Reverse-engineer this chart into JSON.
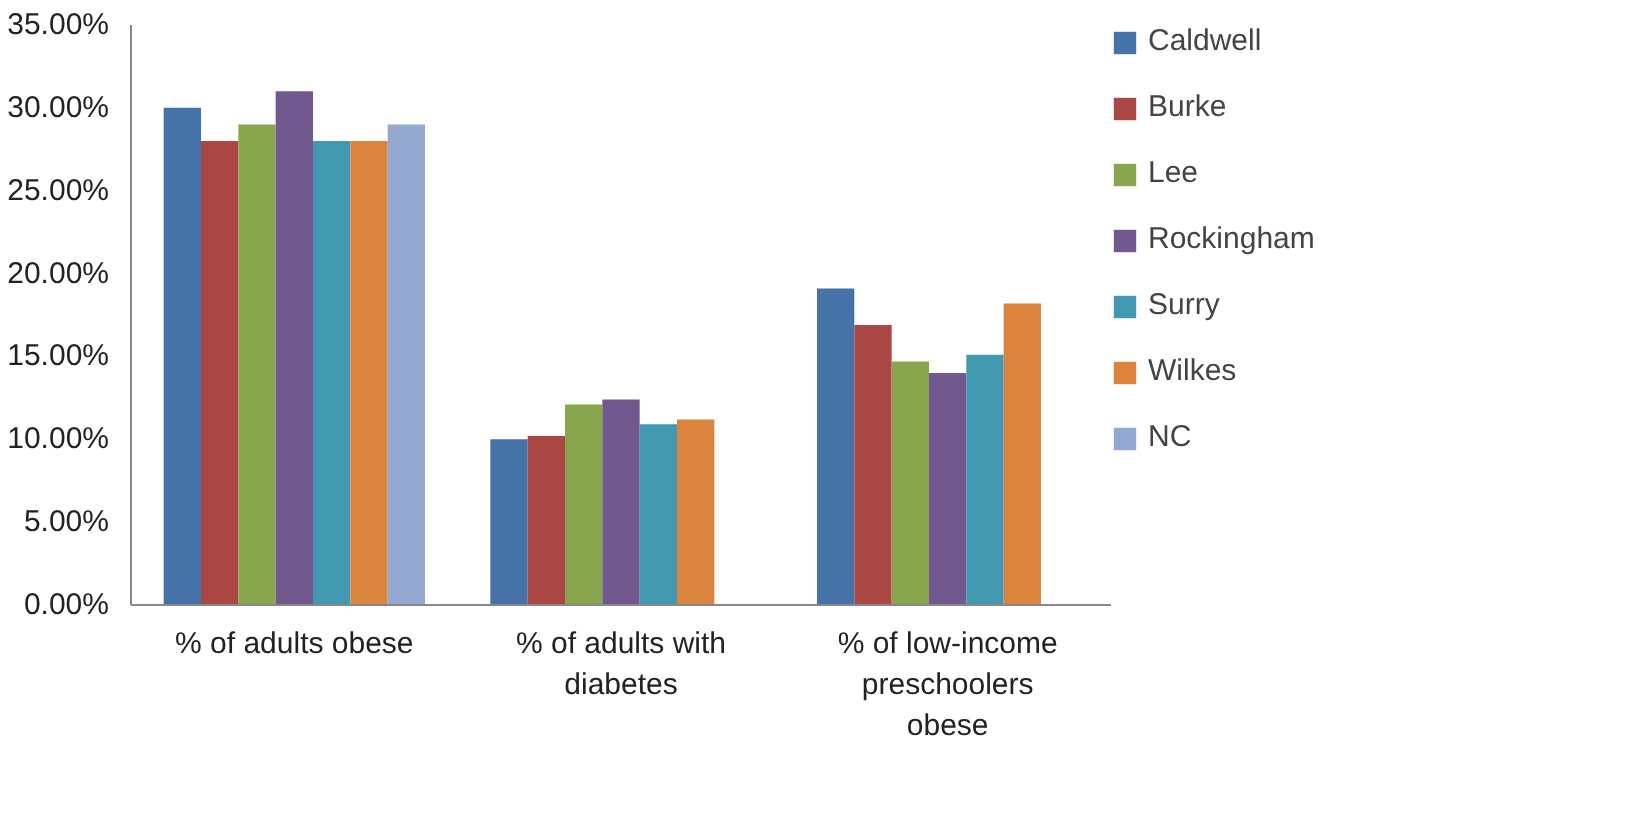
{
  "chart_data": {
    "type": "bar",
    "categories": [
      "% of adults obese",
      "% of adults with diabetes",
      "% of low-income preschoolers obese"
    ],
    "series": [
      {
        "name": "Caldwell",
        "color": "#4572a7",
        "values": [
          30.0,
          10.0,
          19.1
        ]
      },
      {
        "name": "Burke",
        "color": "#aa4643",
        "values": [
          28.0,
          10.2,
          16.9
        ]
      },
      {
        "name": "Lee",
        "color": "#89a54e",
        "values": [
          29.0,
          12.1,
          14.7
        ]
      },
      {
        "name": "Rockingham",
        "color": "#71588f",
        "values": [
          31.0,
          12.4,
          14.0
        ]
      },
      {
        "name": "Surry",
        "color": "#4198af",
        "values": [
          28.0,
          10.9,
          15.1
        ]
      },
      {
        "name": "Wilkes",
        "color": "#db843d",
        "values": [
          28.0,
          11.2,
          18.2
        ]
      },
      {
        "name": "NC",
        "color": "#93a9cf",
        "values": [
          29.0,
          null,
          null
        ]
      }
    ],
    "ylim": [
      0,
      35
    ],
    "yticks": [
      {
        "value": 0,
        "label": "0.00%"
      },
      {
        "value": 5,
        "label": "5.00%"
      },
      {
        "value": 10,
        "label": "10.00%"
      },
      {
        "value": 15,
        "label": "15.00%"
      },
      {
        "value": 20,
        "label": "20.00%"
      },
      {
        "value": 25,
        "label": "25.00%"
      },
      {
        "value": 30,
        "label": "30.00%"
      },
      {
        "value": 35,
        "label": "35.00%"
      }
    ],
    "grid": false,
    "legend": "right"
  }
}
